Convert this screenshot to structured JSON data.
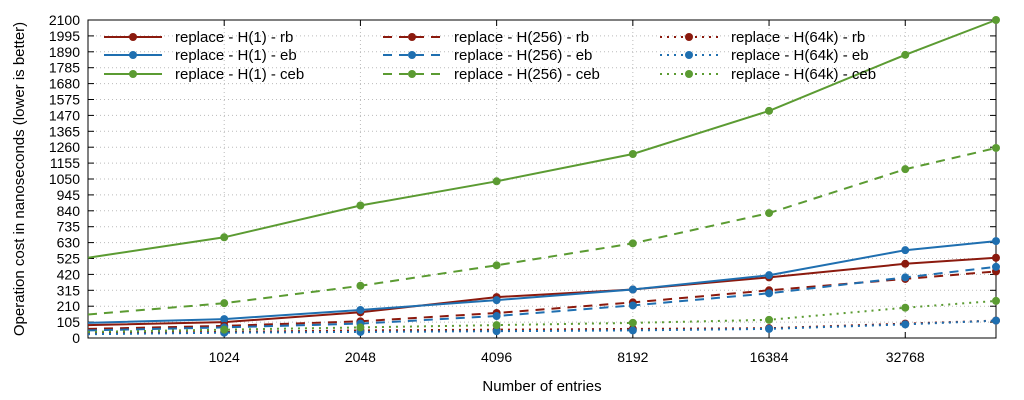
{
  "chart_data": {
    "type": "line",
    "title": "",
    "xlabel": "Number of entries",
    "ylabel": "Operation cost in nanoseconds (lower is better)",
    "x_scale": "log2",
    "xlim": [
      512,
      52000
    ],
    "ylim": [
      0,
      2100
    ],
    "x_ticks": [
      1024,
      2048,
      4096,
      8192,
      16384,
      32768
    ],
    "y_ticks": [
      0,
      105,
      210,
      315,
      420,
      525,
      630,
      735,
      840,
      945,
      1050,
      1155,
      1260,
      1365,
      1470,
      1575,
      1680,
      1785,
      1890,
      1995,
      2100
    ],
    "grid": true,
    "legend_position": "top-left, 3 columns",
    "series": [
      {
        "name": "replace - H(1) - rb",
        "color": "#8b1a0e",
        "dash": "solid",
        "x": [
          512,
          1024,
          2048,
          4096,
          8192,
          16384,
          32768,
          52000
        ],
        "y": [
          85,
          105,
          170,
          270,
          320,
          400,
          490,
          530
        ]
      },
      {
        "name": "replace - H(1) - eb",
        "color": "#1f6fb0",
        "dash": "solid",
        "x": [
          512,
          1024,
          2048,
          4096,
          8192,
          16384,
          32768,
          52000
        ],
        "y": [
          100,
          125,
          185,
          250,
          320,
          415,
          580,
          640
        ]
      },
      {
        "name": "replace - H(1) - ceb",
        "color": "#5b9b32",
        "dash": "solid",
        "x": [
          512,
          1024,
          2048,
          4096,
          8192,
          16384,
          32768,
          52000
        ],
        "y": [
          530,
          665,
          875,
          1035,
          1215,
          1500,
          1870,
          2100
        ]
      },
      {
        "name": "replace - H(256) - rb",
        "color": "#8b1a0e",
        "dash": "dashed",
        "x": [
          512,
          1024,
          2048,
          4096,
          8192,
          16384,
          32768,
          52000
        ],
        "y": [
          60,
          80,
          110,
          165,
          235,
          315,
          390,
          440
        ]
      },
      {
        "name": "replace - H(256) - eb",
        "color": "#1f6fb0",
        "dash": "dashed",
        "x": [
          512,
          1024,
          2048,
          4096,
          8192,
          16384,
          32768,
          52000
        ],
        "y": [
          50,
          70,
          95,
          145,
          215,
          295,
          400,
          470
        ]
      },
      {
        "name": "replace - H(256) - ceb",
        "color": "#5b9b32",
        "dash": "dashed",
        "x": [
          512,
          1024,
          2048,
          4096,
          8192,
          16384,
          32768,
          52000
        ],
        "y": [
          155,
          230,
          345,
          480,
          625,
          825,
          1115,
          1255
        ]
      },
      {
        "name": "replace - H(64k) - rb",
        "color": "#8b1a0e",
        "dash": "dotted",
        "x": [
          512,
          1024,
          2048,
          4096,
          8192,
          16384,
          32768,
          52000
        ],
        "y": [
          30,
          40,
          50,
          55,
          60,
          65,
          95,
          115
        ]
      },
      {
        "name": "replace - H(64k) - eb",
        "color": "#1f6fb0",
        "dash": "dotted",
        "x": [
          512,
          1024,
          2048,
          4096,
          8192,
          16384,
          32768,
          52000
        ],
        "y": [
          25,
          35,
          40,
          45,
          50,
          60,
          90,
          115
        ]
      },
      {
        "name": "replace - H(64k) - ceb",
        "color": "#5b9b32",
        "dash": "dotted",
        "x": [
          512,
          1024,
          2048,
          4096,
          8192,
          16384,
          32768,
          52000
        ],
        "y": [
          40,
          55,
          70,
          85,
          100,
          120,
          200,
          245
        ]
      }
    ]
  }
}
